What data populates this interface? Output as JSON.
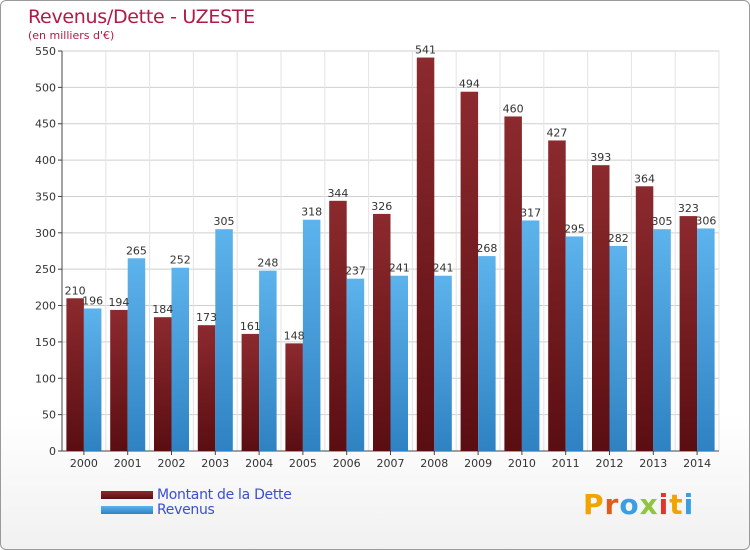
{
  "title": "Revenus/Dette - UZESTE",
  "subtitle": "(en milliers d'€)",
  "colors": {
    "dette": "#7a1a1e",
    "revenus": "#3f9ede",
    "title": "#b01a45",
    "legend_text": "#3a4fd0"
  },
  "legend": {
    "dette": "Montant de la Dette",
    "revenus": "Revenus"
  },
  "logo": {
    "text": "Proxiti",
    "letters": [
      "P",
      "r",
      "o",
      "x",
      "i",
      "t",
      "i"
    ],
    "letter_colors": [
      "#f0a400",
      "#e35b1a",
      "#3a9fe0",
      "#8fc63e",
      "#e3332d",
      "#f0a400",
      "#3a9fe0"
    ]
  },
  "chart_data": {
    "type": "bar",
    "title": "Revenus/Dette - UZESTE",
    "ylabel": "(en milliers d'€)",
    "categories": [
      "2000",
      "2001",
      "2002",
      "2003",
      "2004",
      "2005",
      "2006",
      "2007",
      "2008",
      "2009",
      "2010",
      "2011",
      "2012",
      "2013",
      "2014"
    ],
    "series": [
      {
        "name": "Montant de la Dette",
        "values": [
          210,
          194,
          184,
          173,
          161,
          148,
          344,
          326,
          541,
          494,
          460,
          427,
          393,
          364,
          323
        ]
      },
      {
        "name": "Revenus",
        "values": [
          196,
          265,
          252,
          305,
          248,
          318,
          237,
          241,
          241,
          268,
          317,
          295,
          282,
          305,
          306
        ]
      }
    ],
    "ylim": [
      0,
      550
    ],
    "yticks": [
      0,
      50,
      100,
      150,
      200,
      250,
      300,
      350,
      400,
      450,
      500,
      550
    ],
    "grid": true
  }
}
